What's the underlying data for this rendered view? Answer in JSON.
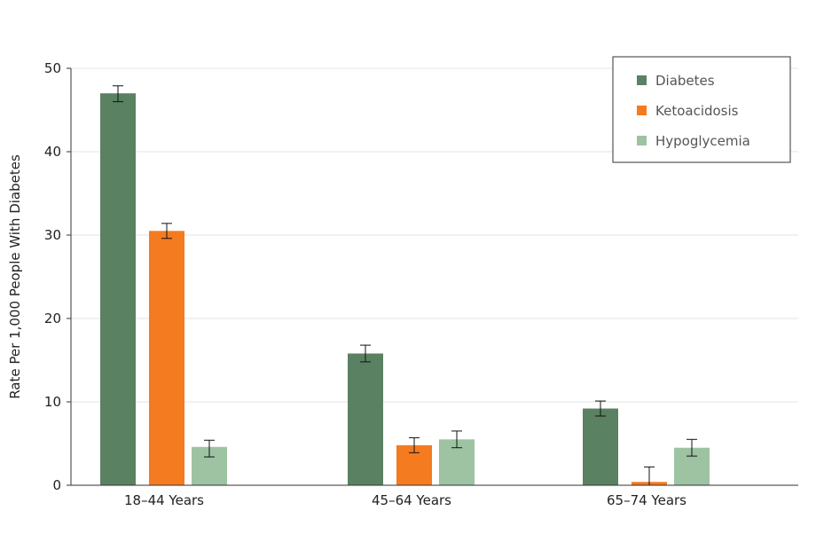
{
  "chart_data": {
    "type": "bar",
    "categories": [
      "18–44 Years",
      "45–64 Years",
      "65–74 Years"
    ],
    "ylabel": "Rate Per 1,000 People With Diabetes",
    "ylim": [
      0,
      50
    ],
    "yticks": [
      0,
      10,
      20,
      30,
      40,
      50
    ],
    "grid": true,
    "legend_position": "top-right",
    "series": [
      {
        "name": "Diabetes",
        "color": "#5a8162",
        "values": [
          47.0,
          15.8,
          9.2
        ],
        "error_low": [
          46.0,
          14.8,
          8.3
        ],
        "error_high": [
          47.9,
          16.8,
          10.1
        ]
      },
      {
        "name": "Ketoacidosis",
        "color": "#f47b20",
        "values": [
          30.5,
          4.8,
          0.4
        ],
        "error_low": [
          29.6,
          3.9,
          0.0
        ],
        "error_high": [
          31.4,
          5.7,
          2.2
        ]
      },
      {
        "name": "Hypoglycemia",
        "color": "#9dc3a3",
        "values": [
          4.6,
          5.5,
          4.5
        ],
        "error_low": [
          3.4,
          4.5,
          3.5
        ],
        "error_high": [
          5.4,
          6.5,
          5.5
        ]
      }
    ]
  }
}
